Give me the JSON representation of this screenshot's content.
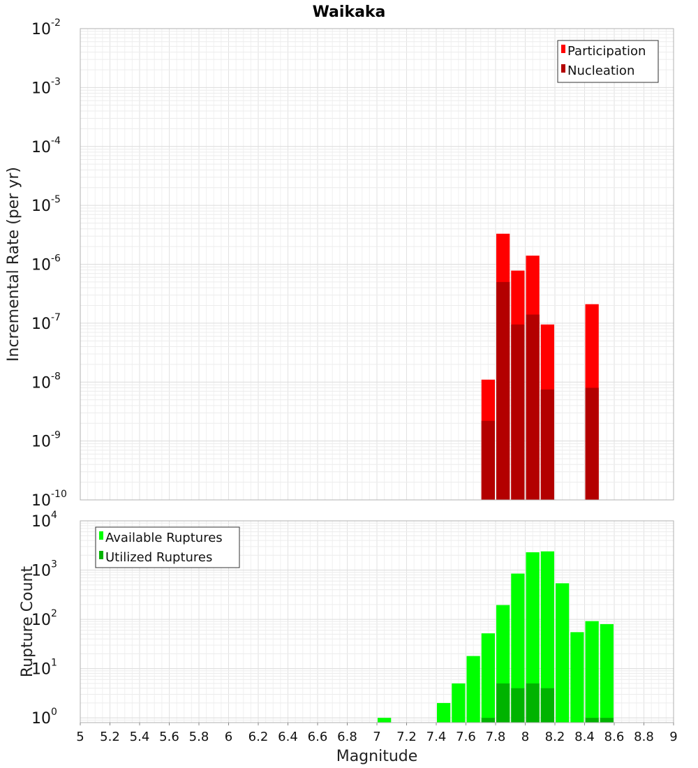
{
  "chart_data": [
    {
      "type": "bar",
      "title": "Waikaka",
      "ylabel": "Incremental Rate (per yr)",
      "yscale": "log",
      "ylim": [
        1e-10,
        0.01
      ],
      "xlim": [
        5,
        9
      ],
      "bin_width": 0.1,
      "grid": true,
      "legend_position": "top-right",
      "series": [
        {
          "name": "Participation",
          "color": "#ff0000",
          "x": [
            7.75,
            7.85,
            7.95,
            8.05,
            8.15,
            8.45
          ],
          "values": [
            1.1e-08,
            3.3e-06,
            7.8e-07,
            1.4e-06,
            9.5e-08,
            2.1e-07
          ]
        },
        {
          "name": "Nucleation",
          "color": "#b30000",
          "x": [
            7.75,
            7.85,
            7.95,
            8.05,
            8.15,
            8.45
          ],
          "values": [
            2.2e-09,
            5e-07,
            9.5e-08,
            1.4e-07,
            7.5e-09,
            8e-09
          ]
        }
      ]
    },
    {
      "type": "bar",
      "xlabel": "Magnitude",
      "ylabel": "Rupture Count",
      "yscale": "log",
      "ylim": [
        0.8,
        10000
      ],
      "xlim": [
        5,
        9
      ],
      "bin_width": 0.1,
      "grid": true,
      "legend_position": "top-left",
      "xticks": [
        "5",
        "5.2",
        "5.4",
        "5.6",
        "5.8",
        "6",
        "6.2",
        "6.4",
        "6.6",
        "6.8",
        "7",
        "7.2",
        "7.4",
        "7.6",
        "7.8",
        "8",
        "8.2",
        "8.4",
        "8.6",
        "8.8",
        "9"
      ],
      "series": [
        {
          "name": "Available Ruptures",
          "color": "#00ff00",
          "x": [
            7.05,
            7.45,
            7.55,
            7.65,
            7.75,
            7.85,
            7.95,
            8.05,
            8.15,
            8.25,
            8.35,
            8.45,
            8.55
          ],
          "values": [
            1,
            2,
            5,
            18,
            52,
            195,
            850,
            2300,
            2400,
            540,
            55,
            92,
            80
          ]
        },
        {
          "name": "Utilized Ruptures",
          "color": "#00b300",
          "x": [
            7.75,
            7.85,
            7.95,
            8.05,
            8.15,
            8.45,
            8.55
          ],
          "values": [
            1,
            5,
            4,
            5,
            4,
            1,
            1
          ]
        }
      ]
    }
  ]
}
